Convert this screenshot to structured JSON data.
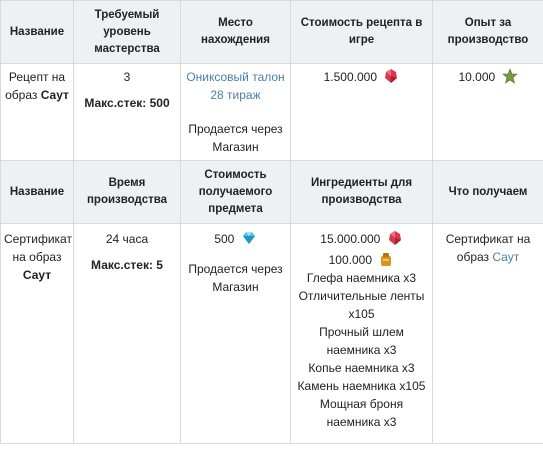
{
  "header1": {
    "name": "Название",
    "level": "Требуемый уровень мастерства",
    "place": "Место нахождения",
    "cost": "Стоимость рецепта в игре",
    "exp": "Опыт за производство"
  },
  "row1": {
    "name_prefix": "Рецепт на образ",
    "name_bold": "Саут",
    "level": "3",
    "stack": "Макс.стек: 500",
    "place_link": "Ониксовый талон 28 тираж",
    "place_sold": "Продается через Магазин",
    "cost": "1.500.000",
    "exp": "10.000"
  },
  "header2": {
    "name": "Название",
    "time": "Время производства",
    "item_cost": "Стоимость получаемого предмета",
    "ingredients": "Ингредиенты для производства",
    "result": "Что получаем"
  },
  "row2": {
    "name_prefix": "Сертификат на образ",
    "name_bold": "Саут",
    "time": "24 часа",
    "stack": "Макс.стек: 5",
    "item_cost": "500",
    "item_sold": "Продается через Магазин",
    "ing_gems": "15.000.000",
    "ing_gold": "100.000",
    "ingredients": [
      "Глефа наемника x3",
      "Отличительные ленты x105",
      "Прочный шлем наемника x3",
      "Копье наемника x3",
      "Камень наемника x105",
      "Мощная броня наемника x3"
    ],
    "result_prefix": "Сертификат на образ",
    "result_link": "Саут"
  },
  "colors": {
    "header_bg": "#eef0f3",
    "link": "#4a7fa8",
    "border": "#d9d9d9"
  },
  "icons": [
    "red-gem-icon",
    "green-star-icon",
    "diamond-icon",
    "gold-bag-icon"
  ]
}
